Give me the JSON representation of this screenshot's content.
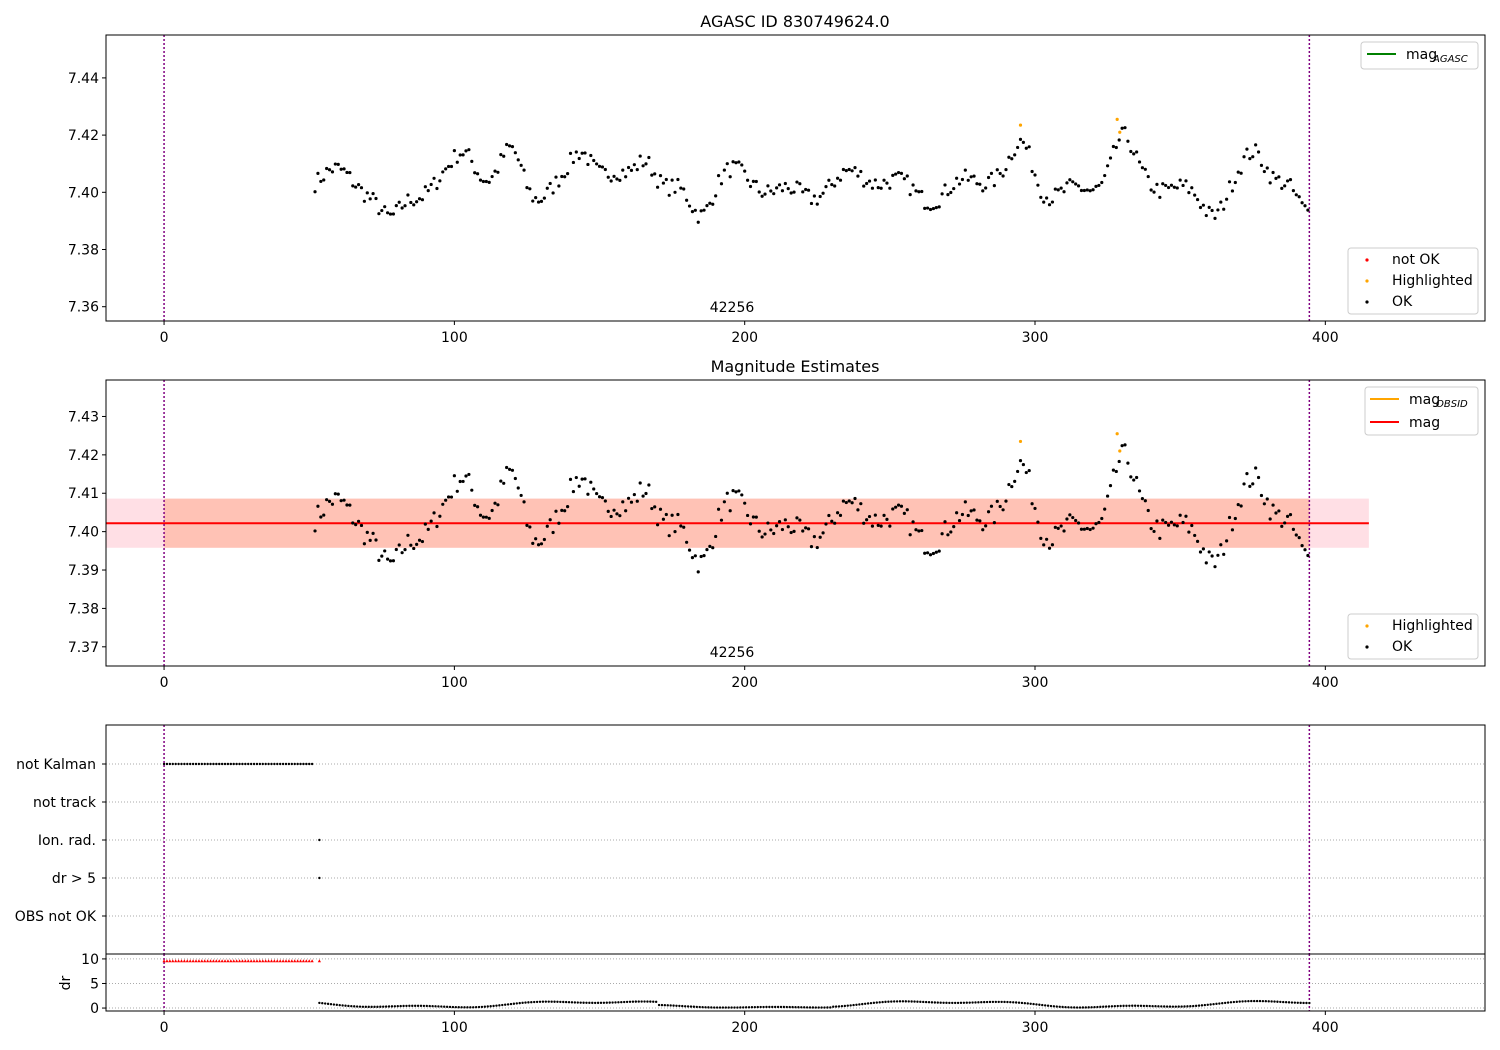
{
  "chart_data": [
    {
      "id": "top",
      "type": "scatter",
      "title": "AGASC ID 830749624.0",
      "xlim": [
        -20,
        455
      ],
      "ylim": [
        7.355,
        7.455
      ],
      "xticks": [
        0,
        100,
        200,
        300,
        400
      ],
      "yticks": [
        7.36,
        7.38,
        7.4,
        7.42,
        7.44
      ],
      "ytick_labels": [
        "7.36",
        "7.38",
        "7.40",
        "7.42",
        "7.44"
      ],
      "obsid_label": "42256",
      "obsid_label_x": 197,
      "vlines": [
        0,
        394.5
      ],
      "legend_upper": {
        "label": "mag",
        "subscript": "AGASC",
        "color": "#008000"
      },
      "legend_lower": [
        {
          "label": "not OK",
          "color": "#ff0000"
        },
        {
          "label": "Highlighted",
          "color": "#ffa500"
        },
        {
          "label": "OK",
          "color": "#000000"
        }
      ],
      "highlighted_points": [
        [
          295,
          7.4235
        ],
        [
          328.3,
          7.4255
        ],
        [
          329.2,
          7.421
        ]
      ],
      "series_color": "#000000"
    },
    {
      "id": "middle",
      "type": "scatter",
      "title": "Magnitude Estimates",
      "xlim": [
        -20,
        455
      ],
      "ylim": [
        7.365,
        7.4395
      ],
      "xticks": [
        0,
        100,
        200,
        300,
        400
      ],
      "yticks": [
        7.37,
        7.38,
        7.39,
        7.4,
        7.41,
        7.42,
        7.43
      ],
      "ytick_labels": [
        "7.37",
        "7.38",
        "7.39",
        "7.40",
        "7.41",
        "7.42",
        "7.43"
      ],
      "obsid_label": "42256",
      "obsid_label_x": 197,
      "vlines": [
        0,
        394.5
      ],
      "mag_line": {
        "value": 7.4022,
        "x_range": [
          -20,
          415
        ],
        "color": "#ff0000"
      },
      "mag_band": {
        "low": 7.3958,
        "high": 7.4086,
        "color": "#ffc0cb"
      },
      "obsid_band": {
        "low": 7.3958,
        "high": 7.4086,
        "x_range": [
          0,
          394.5
        ],
        "color": "#ffa07a"
      },
      "legend_upper": [
        {
          "label": "mag",
          "subscript": "OBSID",
          "color": "#ffa500"
        },
        {
          "label": "mag",
          "subscript": "",
          "color": "#ff0000"
        }
      ],
      "legend_lower": [
        {
          "label": "Highlighted",
          "color": "#ffa500"
        },
        {
          "label": "OK",
          "color": "#000000"
        }
      ],
      "highlighted_points": [
        [
          295,
          7.4235
        ],
        [
          328.3,
          7.4255
        ],
        [
          329.2,
          7.421
        ]
      ]
    },
    {
      "id": "flags",
      "type": "scatter",
      "xlim": [
        -20,
        455
      ],
      "categories": [
        "not Kalman",
        "not track",
        "Ion. rad.",
        "dr > 5",
        "OBS not OK"
      ],
      "flag_ranges": {
        "not Kalman": [
          0,
          51
        ]
      },
      "flag_points": {
        "Ion. rad.": [
          53.5
        ],
        "dr > 5": [
          53.5
        ]
      },
      "vlines": [
        0,
        394.5
      ]
    },
    {
      "id": "dr",
      "type": "scatter",
      "ylabel": "dr",
      "xlim": [
        -20,
        455
      ],
      "ylim": [
        -0.6,
        11
      ],
      "yticks": [
        0,
        5,
        10
      ],
      "ytick_labels": [
        "0",
        "5",
        "10"
      ],
      "xticks": [
        0,
        100,
        200,
        300,
        400
      ],
      "xtick_labels": [
        "0",
        "100",
        "200",
        "300",
        "400"
      ],
      "red_range": [
        0,
        51
      ],
      "red_value": 9.6,
      "red_extra": [
        [
          53.5,
          9.6
        ]
      ],
      "dr_start": 53.5,
      "dr_end": 394.5,
      "vlines": [
        0,
        394.5
      ]
    }
  ],
  "mag_series": {
    "x_start": 52,
    "x_end": 394.5,
    "base": 7.4025,
    "bursts": [
      [
        296,
        0.012
      ],
      [
        330,
        0.012
      ],
      [
        120,
        0.013
      ],
      [
        166,
        0.013
      ],
      [
        144,
        0.01
      ],
      [
        104,
        0.008
      ],
      [
        376,
        0.008
      ],
      [
        185,
        -0.009
      ],
      [
        78,
        -0.01
      ],
      [
        393,
        -0.009
      ],
      [
        362,
        -0.006
      ]
    ]
  }
}
